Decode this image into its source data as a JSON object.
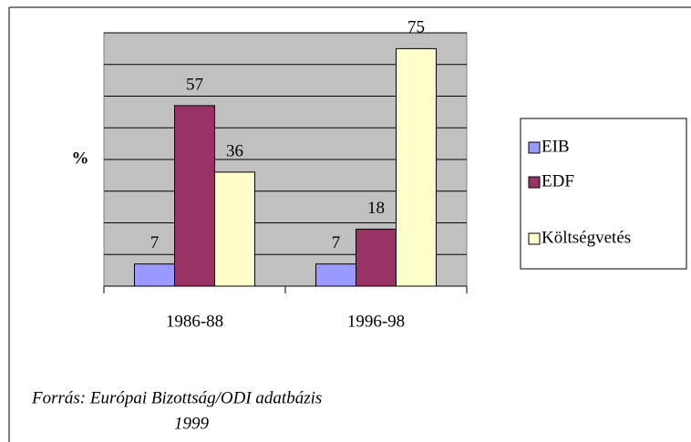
{
  "chart_data": {
    "type": "bar",
    "categories": [
      "1986-88",
      "1996-98"
    ],
    "series": [
      {
        "name": "EIB",
        "color": "#9999ff",
        "values": [
          7,
          7
        ]
      },
      {
        "name": "EDF",
        "color": "#993366",
        "values": [
          57,
          18
        ]
      },
      {
        "name": "Költségvetés",
        "color": "#ffffcc",
        "values": [
          36,
          75
        ]
      }
    ],
    "ylabel": "%",
    "ylim": [
      0,
      80
    ],
    "yticks": [
      0,
      10,
      20,
      30,
      40,
      50,
      60,
      70,
      80
    ],
    "grid": true,
    "plot_background": "#c0c0c0",
    "legend": "right",
    "source": [
      "Forrás: Európai Bizottság/ODI adatbázis",
      "1999"
    ]
  }
}
